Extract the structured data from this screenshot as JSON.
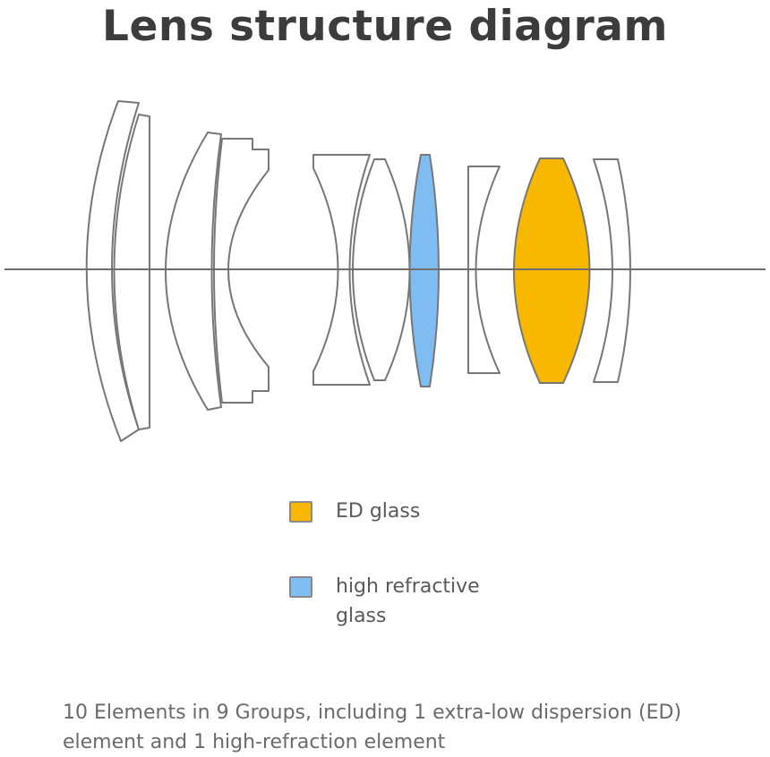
{
  "title": "Lens structure diagram",
  "colors": {
    "ed_glass": "#F8B800",
    "high_refractive_glass": "#7FBCF2",
    "lens_outline": "#777777",
    "axis": "#6e6e6e"
  },
  "legend": {
    "ed_label": "ED glass",
    "high_refractive_label": "high refractive glass"
  },
  "caption": "10 Elements in 9 Groups, including 1 extra-low dispersion (ED) element and 1 high-refraction element"
}
